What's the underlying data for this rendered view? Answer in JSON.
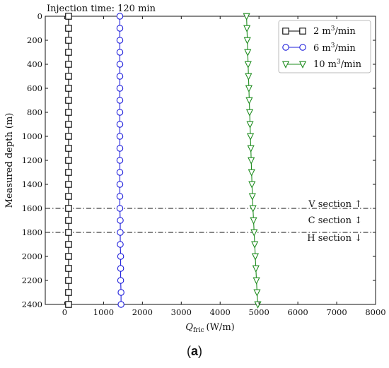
{
  "caption": {
    "open": "(",
    "letter": "a",
    "close": ")"
  },
  "chart_data": {
    "type": "line",
    "title": "Injection time: 120 min",
    "xlabel": "Q",
    "xlabel_sub": "fric",
    "xlabel_unit": "(W/m)",
    "ylabel": "Measured depth (m)",
    "xlim": [
      -500,
      8000
    ],
    "ylim": [
      2400,
      0
    ],
    "y_inverted": true,
    "grid": false,
    "legend_position": "top-right",
    "xticks": [
      0,
      1000,
      2000,
      3000,
      4000,
      5000,
      6000,
      7000,
      8000
    ],
    "yticks": [
      0,
      200,
      400,
      600,
      800,
      1000,
      1200,
      1400,
      1600,
      1800,
      2000,
      2200,
      2400
    ],
    "series": [
      {
        "name": "2 m³/min",
        "label_base": "2 m",
        "label_sup": "3",
        "label_tail": "/min",
        "marker": "square",
        "color": "#000000",
        "depth": [
          0,
          100,
          200,
          300,
          400,
          500,
          600,
          700,
          800,
          900,
          1000,
          1100,
          1200,
          1300,
          1400,
          1500,
          1600,
          1700,
          1800,
          1900,
          2000,
          2100,
          2200,
          2300,
          2400
        ],
        "q": [
          100,
          100,
          100,
          100,
          100,
          100,
          100,
          100,
          100,
          100,
          100,
          100,
          100,
          100,
          100,
          100,
          100,
          100,
          100,
          100,
          100,
          100,
          100,
          100,
          100
        ]
      },
      {
        "name": "6 m³/min",
        "label_base": "6 m",
        "label_sup": "3",
        "label_tail": "/min",
        "marker": "circle",
        "color": "#1f1fdb",
        "depth": [
          0,
          100,
          200,
          300,
          400,
          500,
          600,
          700,
          800,
          900,
          1000,
          1100,
          1200,
          1300,
          1400,
          1500,
          1600,
          1700,
          1800,
          1900,
          2000,
          2100,
          2200,
          2300,
          2400
        ],
        "q": [
          1420,
          1420,
          1420,
          1420,
          1420,
          1420,
          1420,
          1420,
          1420,
          1420,
          1420,
          1420,
          1420,
          1420,
          1420,
          1420,
          1420,
          1430,
          1430,
          1430,
          1440,
          1440,
          1440,
          1450,
          1450
        ]
      },
      {
        "name": "10 m³/min",
        "label_base": "10 m",
        "label_sup": "3",
        "label_tail": "/min",
        "marker": "triangle-down",
        "color": "#1e8c1e",
        "depth": [
          0,
          100,
          200,
          300,
          400,
          500,
          600,
          700,
          800,
          900,
          1000,
          1100,
          1200,
          1300,
          1400,
          1500,
          1600,
          1700,
          1800,
          1900,
          2000,
          2100,
          2200,
          2300,
          2400
        ],
        "q": [
          4680,
          4690,
          4700,
          4710,
          4720,
          4730,
          4740,
          4750,
          4760,
          4770,
          4780,
          4790,
          4800,
          4810,
          4820,
          4830,
          4845,
          4860,
          4875,
          4890,
          4905,
          4920,
          4935,
          4950,
          4970
        ]
      }
    ],
    "section_lines": [
      1600,
      1800
    ],
    "annotations": {
      "v_section": "V section ↑",
      "c_section": "C section ↕",
      "h_section": "H section ↓"
    }
  }
}
